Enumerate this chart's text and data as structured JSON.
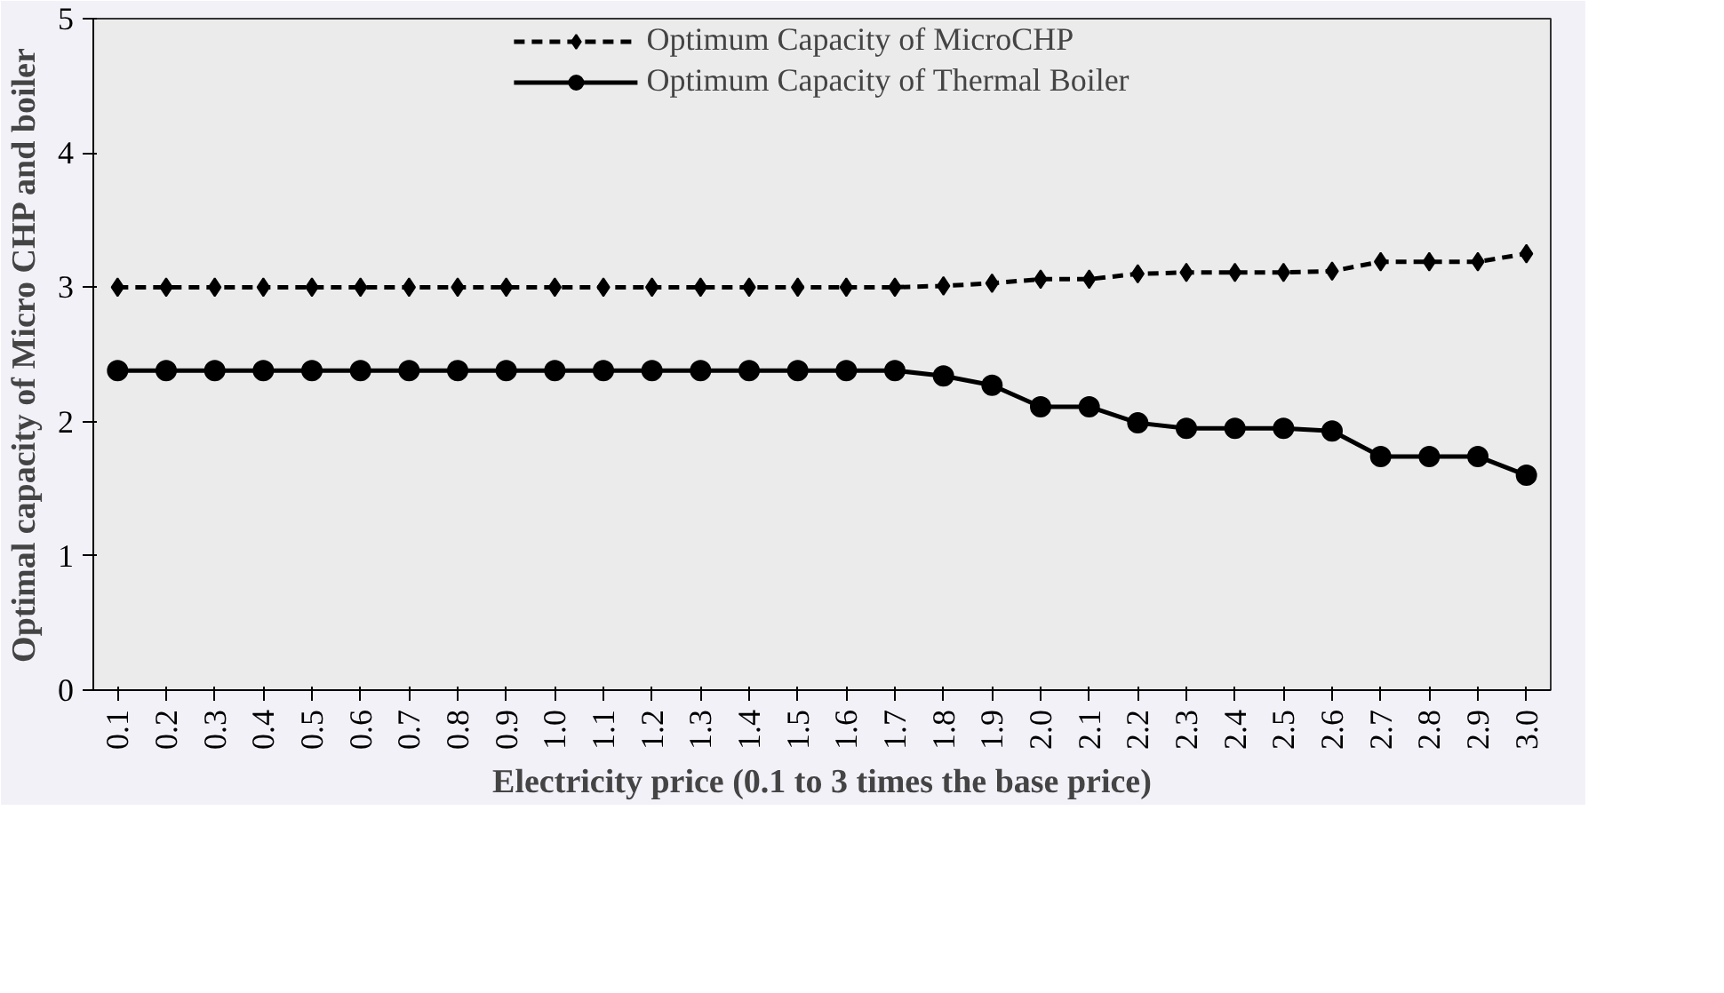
{
  "chart_data": {
    "type": "line",
    "xlabel": "Electricity price (0.1 to 3 times the base price)",
    "ylabel": "Optimal capacity of Micro CHP and boiler",
    "categories": [
      "0.1",
      "0.2",
      "0.3",
      "0.4",
      "0.5",
      "0.6",
      "0.7",
      "0.8",
      "0.9",
      "1.0",
      "1.1",
      "1.2",
      "1.3",
      "1.4",
      "1.5",
      "1.6",
      "1.7",
      "1.8",
      "1.9",
      "2.0",
      "2.1",
      "2.2",
      "2.3",
      "2.4",
      "2.5",
      "2.6",
      "2.7",
      "2.8",
      "2.9",
      "3.0"
    ],
    "series": [
      {
        "name": "Optimum Capacity of MicroCHP",
        "color": "#000000",
        "marker": "diamond",
        "line_style": "dashed",
        "values": [
          3.0,
          3.0,
          3.0,
          3.0,
          3.0,
          3.0,
          3.0,
          3.0,
          3.0,
          3.0,
          3.0,
          3.0,
          3.0,
          3.0,
          3.0,
          3.0,
          3.0,
          3.01,
          3.03,
          3.06,
          3.06,
          3.1,
          3.11,
          3.11,
          3.11,
          3.12,
          3.19,
          3.19,
          3.19,
          3.25
        ]
      },
      {
        "name": "Optimum Capacity of Thermal Boiler",
        "color": "#000000",
        "marker": "circle",
        "line_style": "solid",
        "values": [
          2.38,
          2.38,
          2.38,
          2.38,
          2.38,
          2.38,
          2.38,
          2.38,
          2.38,
          2.38,
          2.38,
          2.38,
          2.38,
          2.38,
          2.38,
          2.38,
          2.38,
          2.34,
          2.27,
          2.11,
          2.11,
          1.99,
          1.95,
          1.95,
          1.95,
          1.93,
          1.74,
          1.74,
          1.74,
          1.6
        ]
      }
    ],
    "ylim": [
      0,
      5
    ],
    "yticks": [
      0,
      1,
      2,
      3,
      4,
      5
    ],
    "grid": false,
    "legend": "top"
  }
}
